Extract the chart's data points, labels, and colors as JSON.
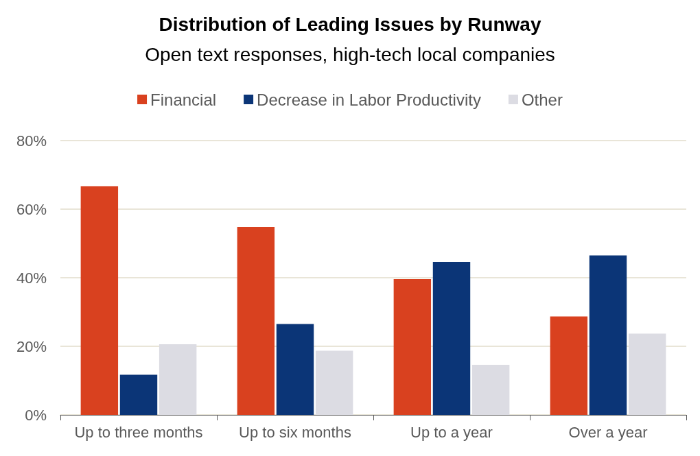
{
  "chart_data": {
    "type": "bar",
    "title": "Distribution of Leading Issues by Runway",
    "subtitle": "Open text responses, high-tech local companies",
    "categories": [
      "Up to three months",
      "Up to six months",
      "Up to a year",
      "Over a year"
    ],
    "series": [
      {
        "name": "Financial",
        "color": "#d9411f",
        "values": [
          66.7,
          54.8,
          39.6,
          28.7
        ]
      },
      {
        "name": "Decrease in Labor Productivity",
        "color": "#0b3577",
        "values": [
          11.7,
          26.5,
          44.6,
          46.5
        ]
      },
      {
        "name": "Other",
        "color": "#dcdce3",
        "values": [
          20.6,
          18.7,
          14.6,
          23.7
        ]
      }
    ],
    "ylim": [
      0,
      80
    ],
    "yticks": [
      {
        "value": 0,
        "label": "0%"
      },
      {
        "value": 20,
        "label": "20%"
      },
      {
        "value": 40,
        "label": "40%"
      },
      {
        "value": 60,
        "label": "60%"
      },
      {
        "value": 80,
        "label": "80%"
      }
    ],
    "grid": "y",
    "legend": "top"
  }
}
